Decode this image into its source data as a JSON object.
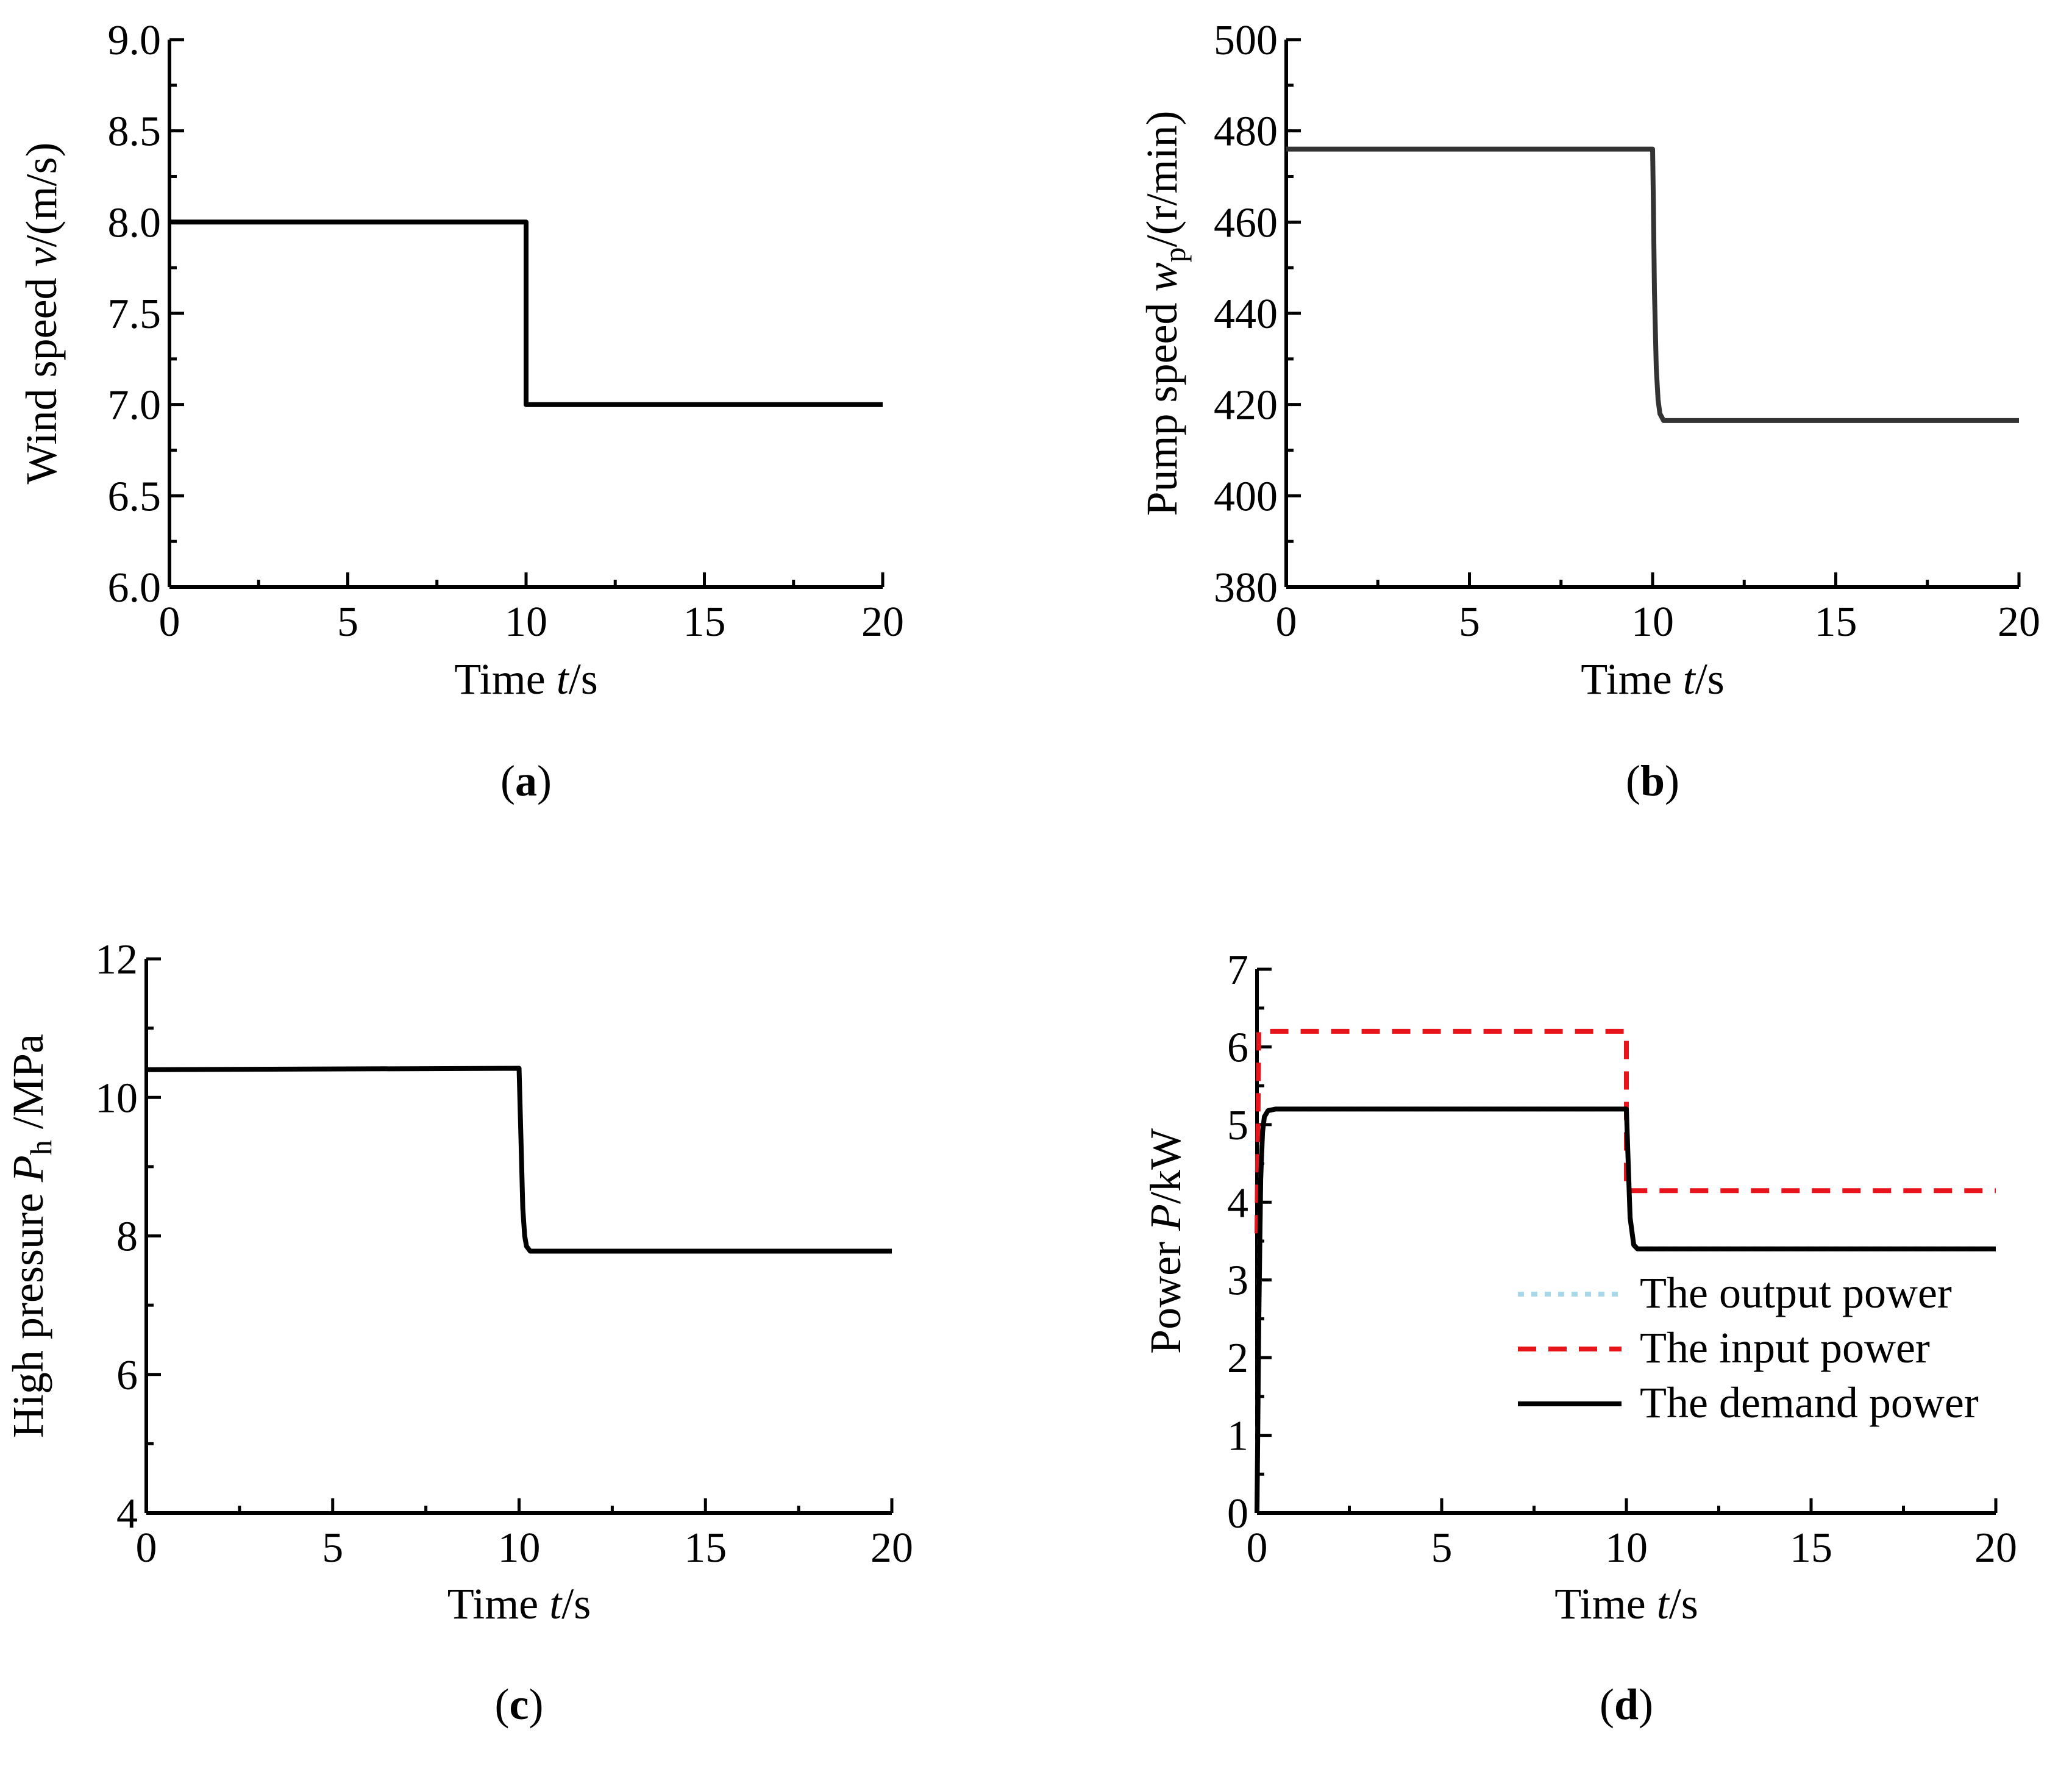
{
  "figure": {
    "panels": [
      "a",
      "b",
      "c",
      "d"
    ]
  },
  "chart_data": [
    {
      "id": "a",
      "type": "line",
      "panel_label": "(a)",
      "panel_letter": "a",
      "xlabel": {
        "pre": "Time ",
        "var": "t",
        "post": "/s"
      },
      "ylabel": {
        "pre": "Wind speed ",
        "var": "v",
        "sub": "",
        "post": "/(m/s)"
      },
      "xlim": [
        0,
        20
      ],
      "ylim": [
        6.0,
        9.0
      ],
      "xticks": [
        0,
        5,
        10,
        15,
        20
      ],
      "xtick_labels": [
        "0",
        "5",
        "10",
        "15",
        "20"
      ],
      "yticks": [
        6.0,
        6.5,
        7.0,
        7.5,
        8.0,
        8.5,
        9.0
      ],
      "ytick_labels": [
        "6.0",
        "6.5",
        "7.0",
        "7.5",
        "8.0",
        "8.5",
        "9.0"
      ],
      "series": [
        {
          "name": "wind speed",
          "color": "#000000",
          "dash": "",
          "x": [
            0,
            10,
            10,
            20
          ],
          "y": [
            8.0,
            8.0,
            7.0,
            7.0
          ]
        }
      ]
    },
    {
      "id": "b",
      "type": "line",
      "panel_label": "(b)",
      "panel_letter": "b",
      "xlabel": {
        "pre": "Time ",
        "var": "t",
        "post": "/s"
      },
      "ylabel": {
        "pre": "Pump speed ",
        "var": "w",
        "sub": "p",
        "post": "/(r/min)"
      },
      "xlim": [
        0,
        20
      ],
      "ylim": [
        380,
        500
      ],
      "xticks": [
        0,
        5,
        10,
        15,
        20
      ],
      "xtick_labels": [
        "0",
        "5",
        "10",
        "15",
        "20"
      ],
      "yticks": [
        380,
        400,
        420,
        440,
        460,
        480,
        500
      ],
      "ytick_labels": [
        "380",
        "400",
        "420",
        "440",
        "460",
        "480",
        "500"
      ],
      "series": [
        {
          "name": "pump speed",
          "color": "#333333",
          "dash": "",
          "x": [
            0,
            10,
            10.02,
            10.05,
            10.1,
            10.15,
            10.2,
            10.3,
            20
          ],
          "y": [
            476,
            476,
            465,
            445,
            428,
            421,
            418,
            416.5,
            416.5
          ]
        }
      ]
    },
    {
      "id": "c",
      "type": "line",
      "panel_label": "(c)",
      "panel_letter": "c",
      "xlabel": {
        "pre": "Time ",
        "var": "t",
        "post": "/s"
      },
      "ylabel": {
        "pre": "High pressure ",
        "var": "P",
        "sub": "h",
        "post": " /MPa"
      },
      "xlim": [
        0,
        20
      ],
      "ylim": [
        4,
        12
      ],
      "xticks": [
        0,
        5,
        10,
        15,
        20
      ],
      "xtick_labels": [
        "0",
        "5",
        "10",
        "15",
        "20"
      ],
      "yticks": [
        4,
        6,
        8,
        10,
        12
      ],
      "ytick_labels": [
        "4",
        "6",
        "8",
        "10",
        "12"
      ],
      "series": [
        {
          "name": "high pressure",
          "color": "#000000",
          "dash": "",
          "x": [
            0,
            10,
            10.05,
            10.1,
            10.15,
            10.2,
            10.3,
            20
          ],
          "y": [
            10.4,
            10.42,
            9.4,
            8.4,
            8.0,
            7.85,
            7.78,
            7.78
          ]
        }
      ]
    },
    {
      "id": "d",
      "type": "line",
      "panel_label": "(d)",
      "panel_letter": "d",
      "xlabel": {
        "pre": "Time ",
        "var": "t",
        "post": "/s"
      },
      "ylabel": {
        "pre": "Power ",
        "var": "P",
        "sub": "",
        "post": "/kW"
      },
      "xlim": [
        0,
        20
      ],
      "ylim": [
        0,
        7
      ],
      "xticks": [
        0,
        5,
        10,
        15,
        20
      ],
      "xtick_labels": [
        "0",
        "5",
        "10",
        "15",
        "20"
      ],
      "yticks": [
        0,
        1,
        2,
        3,
        4,
        5,
        6,
        7
      ],
      "ytick_labels": [
        "0",
        "1",
        "2",
        "3",
        "4",
        "5",
        "6",
        "7"
      ],
      "legend_position": "bottom-right",
      "series": [
        {
          "name": "The output power",
          "color": "#a8d8ea",
          "dash": "10 12",
          "x": [
            0,
            0.05,
            0.1,
            0.15,
            0.2,
            0.3,
            0.5,
            10,
            10.05,
            10.1,
            10.2,
            10.3,
            20
          ],
          "y": [
            0,
            2.5,
            4.3,
            4.9,
            5.1,
            5.18,
            5.2,
            5.2,
            4.5,
            3.8,
            3.45,
            3.4,
            3.4
          ]
        },
        {
          "name": "The input power",
          "color": "#e8141b",
          "dash": "30 20",
          "x": [
            0,
            0.05,
            0.1,
            10,
            10,
            20
          ],
          "y": [
            3.6,
            6.2,
            6.2,
            6.2,
            4.15,
            4.15
          ]
        },
        {
          "name": "The demand power",
          "color": "#000000",
          "dash": "",
          "x": [
            0,
            0.05,
            0.1,
            0.15,
            0.2,
            0.3,
            0.5,
            10,
            10.05,
            10.1,
            10.2,
            10.3,
            20
          ],
          "y": [
            0,
            2.5,
            4.3,
            4.9,
            5.1,
            5.18,
            5.2,
            5.2,
            4.5,
            3.8,
            3.45,
            3.4,
            3.4
          ]
        }
      ]
    }
  ]
}
